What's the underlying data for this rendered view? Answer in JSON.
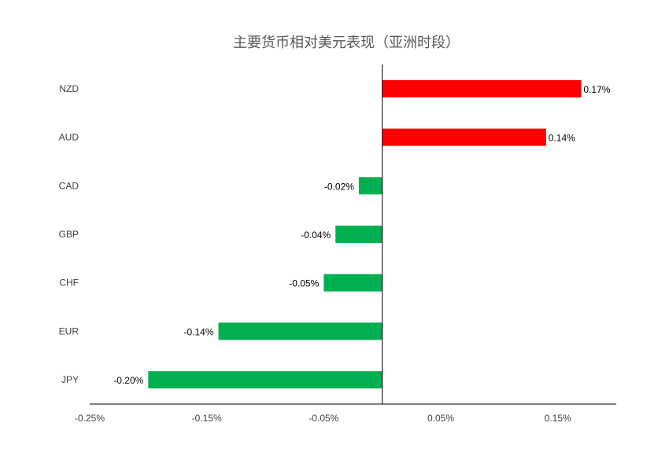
{
  "chart_data": {
    "type": "bar",
    "orientation": "horizontal",
    "title": "主要货币相对美元表现（亚洲时段）",
    "xlabel": "",
    "ylabel": "",
    "categories": [
      "NZD",
      "AUD",
      "CAD",
      "GBP",
      "CHF",
      "EUR",
      "JPY"
    ],
    "values": [
      0.0017,
      0.0014,
      -0.0002,
      -0.0004,
      -0.0005,
      -0.0014,
      -0.002
    ],
    "data_labels": [
      "0.17%",
      "0.14%",
      "-0.02%",
      "-0.04%",
      "-0.05%",
      "-0.14%",
      "-0.20%"
    ],
    "xlim": [
      -0.0025,
      0.002
    ],
    "x_ticks": [
      -0.0025,
      -0.0015,
      -0.0005,
      0.0005,
      0.0015
    ],
    "x_tick_labels": [
      "-0.25%",
      "-0.15%",
      "-0.05%",
      "0.05%",
      "0.15%"
    ],
    "grid": false,
    "legend": "none",
    "colors": {
      "positive": "#ff0000",
      "negative": "#00b050",
      "axis": "#000000",
      "text": "#404040"
    }
  }
}
